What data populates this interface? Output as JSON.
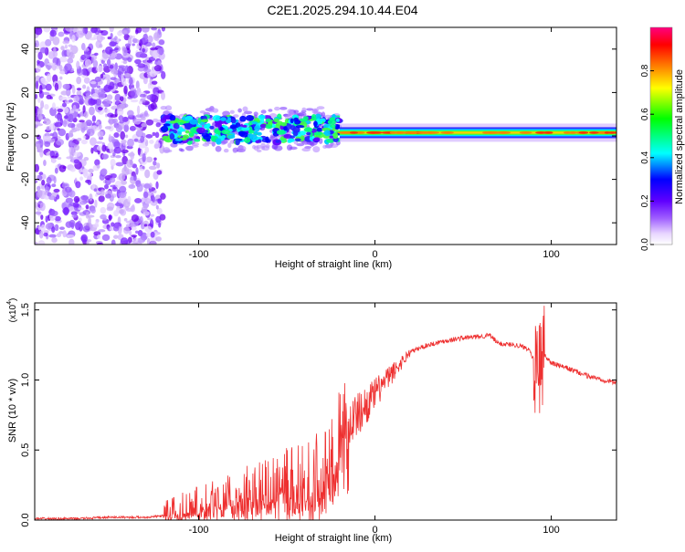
{
  "title": "C2E1.2025.294.10.44.E04",
  "chart_data": [
    {
      "type": "heatmap",
      "title": "C2E1.2025.294.10.44.E04",
      "xlabel": "Height of straight line (km)",
      "ylabel": "Frequency (Hz)",
      "xlim": [
        -193,
        137
      ],
      "ylim": [
        -50,
        50
      ],
      "xticks": [
        -100,
        0,
        100
      ],
      "yticks": [
        -40,
        -20,
        0,
        20,
        40
      ],
      "xtick_labels": [
        "-100",
        "0",
        "100"
      ],
      "ytick_labels": [
        "-40",
        "-20",
        "0",
        "20",
        "40"
      ],
      "colorbar": {
        "label": "Normalized spectral amplitude",
        "range": [
          0,
          1
        ],
        "ticks": [
          0.0,
          0.2,
          0.4,
          0.6,
          0.8
        ],
        "tick_labels": [
          "0.0",
          "0.2",
          "0.4",
          "0.6",
          "0.8"
        ],
        "colors": [
          "#ffffff",
          "#c8a0f0",
          "#8000ff",
          "#0000ff",
          "#00ffff",
          "#00ff00",
          "#ffff00",
          "#ff8000",
          "#ff0000",
          "#ff0080"
        ]
      },
      "regions": [
        {
          "name": "broadband noise",
          "x": [
            -193,
            -120
          ],
          "y": [
            -50,
            50
          ],
          "level": 0.1
        },
        {
          "name": "wide band",
          "x": [
            -120,
            -20
          ],
          "y": [
            -3,
            9
          ],
          "level": 0.35
        },
        {
          "name": "narrow line",
          "x": [
            -20,
            137
          ],
          "y": [
            0,
            3
          ],
          "level": 0.85
        }
      ]
    },
    {
      "type": "line",
      "title": "",
      "xlabel": "Height of straight line (km)",
      "ylabel": "SNR (10 * v/v)",
      "y_scale_label": "(x10",
      "y_scale_exponent": "4",
      "xlim": [
        -193,
        137
      ],
      "ylim": [
        0,
        1.55
      ],
      "xticks": [
        -100,
        0,
        100
      ],
      "yticks": [
        0.0,
        0.5,
        1.0,
        1.5
      ],
      "xtick_labels": [
        "-100",
        "0",
        "100"
      ],
      "ytick_labels": [
        "0.0",
        "0.5",
        "1.0",
        "1.5"
      ],
      "color": "#ee3030",
      "series": [
        {
          "name": "SNR",
          "x": [
            -193,
            -170,
            -150,
            -130,
            -120,
            -110,
            -100,
            -90,
            -80,
            -70,
            -60,
            -50,
            -40,
            -30,
            -25,
            -20,
            -15,
            -10,
            -5,
            0,
            10,
            20,
            30,
            40,
            50,
            60,
            65,
            70,
            80,
            88,
            92,
            95,
            100,
            110,
            120,
            130,
            137
          ],
          "values": [
            0.01,
            0.01,
            0.02,
            0.02,
            0.03,
            0.05,
            0.08,
            0.11,
            0.14,
            0.18,
            0.2,
            0.24,
            0.28,
            0.33,
            0.45,
            0.6,
            0.7,
            0.75,
            0.82,
            0.9,
            1.05,
            1.2,
            1.25,
            1.28,
            1.3,
            1.31,
            1.32,
            1.26,
            1.25,
            1.22,
            1.05,
            1.2,
            1.12,
            1.08,
            1.03,
            1.0,
            0.98
          ]
        }
      ]
    }
  ]
}
